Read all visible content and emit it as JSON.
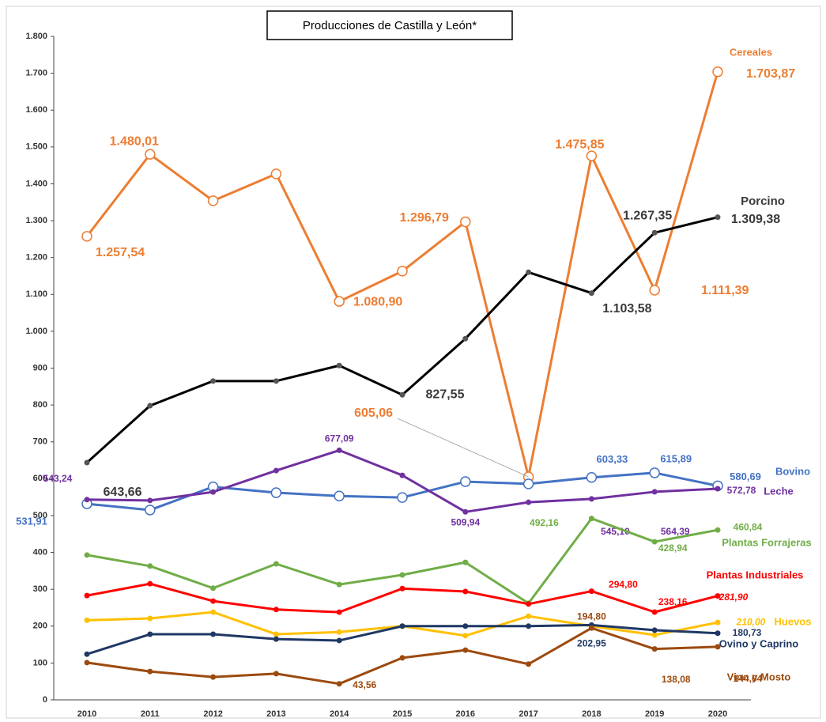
{
  "chart_data": {
    "type": "line",
    "title": "Producciones de Castilla y León*",
    "categories": [
      "2010",
      "2011",
      "2012",
      "2013",
      "2014",
      "2015",
      "2016",
      "2017",
      "2018",
      "2019",
      "2020"
    ],
    "ylim": [
      0,
      1800
    ],
    "yticks": [
      0,
      100,
      200,
      300,
      400,
      500,
      600,
      700,
      800,
      900,
      {
        "value": 1000,
        "label": "1.000"
      },
      {
        "value": 1100,
        "label": "1.100"
      },
      {
        "value": 1200,
        "label": "1.200"
      },
      {
        "value": 1300,
        "label": "1.300"
      },
      {
        "value": 1400,
        "label": "1.400"
      },
      {
        "value": 1500,
        "label": "1.500"
      },
      {
        "value": 1600,
        "label": "1.600"
      },
      {
        "value": 1700,
        "label": "1.700"
      },
      {
        "value": {
          "v": 1800
        },
        "label": "1.800"
      }
    ],
    "grid": false,
    "series": [
      {
        "name": "Cereales",
        "color": "#ed7d31",
        "marker": "open",
        "values": [
          1257.54,
          1480.01,
          1354,
          1427,
          1080.9,
          1163,
          1296.79,
          605.06,
          1475.85,
          1111.39,
          1703.87
        ],
        "value_labels": [
          "1.257,54",
          "1.480,01",
          null,
          null,
          "1.080,90",
          null,
          "1.296,79",
          "605,06",
          "1.475,85",
          "1.111,39",
          "1.703,87"
        ]
      },
      {
        "name": "Porcino",
        "color": "#000000",
        "marker": "filled",
        "values": [
          643.66,
          798,
          865,
          865,
          907,
          827.55,
          980,
          1160,
          1103.58,
          1267.35,
          1309.38
        ],
        "value_labels": [
          "643,66",
          null,
          null,
          null,
          null,
          "827,55",
          null,
          null,
          "1.103,58",
          "1.267,35",
          "1.309,38"
        ]
      },
      {
        "name": "Bovino",
        "color": "#4472c4",
        "marker": "open",
        "values": [
          531.91,
          515,
          578,
          562,
          553,
          549,
          592,
          586,
          603.33,
          615.89,
          580.69
        ],
        "value_labels": [
          "531,91",
          null,
          null,
          null,
          null,
          null,
          null,
          null,
          "603,33",
          "615,89",
          "580,69"
        ]
      },
      {
        "name": "Leche",
        "color": "#7030a0",
        "marker": "filled",
        "values": [
          543.24,
          541,
          564,
          622,
          677.09,
          609,
          509.94,
          536,
          545.1,
          564.39,
          572.78
        ],
        "value_labels": [
          "543,24",
          null,
          null,
          null,
          "677,09",
          null,
          "509,94",
          null,
          "545,10",
          "564,39",
          "572,78"
        ]
      },
      {
        "name": "Plantas Forrajeras",
        "color": "#70ad47",
        "marker": "filled",
        "values": [
          393,
          363,
          303,
          369,
          313,
          339,
          373,
          262,
          492.16,
          428.94,
          460.84
        ],
        "value_labels": [
          null,
          null,
          null,
          null,
          null,
          null,
          null,
          null,
          "492,16",
          "428,94",
          "460,84"
        ]
      },
      {
        "name": "Plantas Industriales",
        "color": "#ff0000",
        "marker": "filled",
        "values": [
          283,
          315,
          268,
          245,
          238,
          302,
          294,
          260,
          294.8,
          238.16,
          281.9
        ],
        "value_labels": [
          null,
          null,
          null,
          null,
          null,
          null,
          null,
          null,
          "294,80",
          "238,16",
          "281,90"
        ]
      },
      {
        "name": "Huevos",
        "color": "#ffc000",
        "marker": "filled",
        "values": [
          216,
          221,
          238,
          178,
          184,
          200,
          174,
          227,
          200,
          176,
          210.0
        ],
        "value_labels": [
          null,
          null,
          null,
          null,
          null,
          null,
          null,
          null,
          null,
          null,
          "210,00"
        ]
      },
      {
        "name": "Ovino y Caprino",
        "color": "#1f3864",
        "marker": "filled",
        "values": [
          124,
          178,
          178,
          165,
          161,
          200,
          200,
          200,
          202.95,
          189,
          180.73
        ],
        "value_labels": [
          null,
          null,
          null,
          null,
          null,
          null,
          null,
          null,
          "202,95",
          null,
          "180,73"
        ]
      },
      {
        "name": "Vino y Mosto",
        "color": "#9c4a0f",
        "marker": "filled",
        "values": [
          101,
          77,
          62,
          71,
          43.56,
          114,
          135,
          97,
          194.8,
          138.08,
          144.04
        ],
        "value_labels": [
          null,
          null,
          null,
          null,
          "43,56",
          null,
          null,
          null,
          "194,80",
          "138,08",
          "144,04"
        ]
      }
    ]
  }
}
